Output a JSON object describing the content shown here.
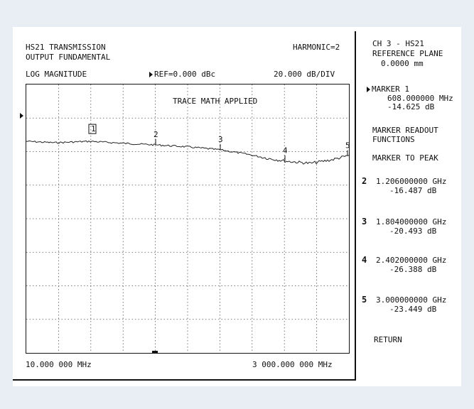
{
  "header": {
    "title_line1": "HS21 TRANSMISSION",
    "title_line2": "OUTPUT FUNDAMENTAL",
    "harmonic": "HARMONIC=2",
    "format": "LOG MAGNITUDE",
    "ref": "REF=0.000 dBc",
    "scale": "20.000 dB/DIV"
  },
  "plot": {
    "annotation": "TRACE MATH APPLIED",
    "start_freq": "10.000 000 MHz",
    "stop_freq": "3 000.000 000 MHz",
    "markers": [
      "1",
      "2",
      "3",
      "4",
      "5"
    ]
  },
  "side": {
    "channel": "CH 3 - HS21",
    "ref_plane_label": "REFERENCE PLANE",
    "ref_plane_value": "0.0000 mm",
    "active_marker": "MARKER 1",
    "active_marker_freq": "608.000000 MHz",
    "active_marker_val": "-14.625 dB",
    "readout_line1": "MARKER READOUT",
    "readout_line2": "FUNCTIONS",
    "marker_to_peak": "MARKER TO PEAK",
    "markers": [
      {
        "num": "2",
        "freq": "1.206000000 GHz",
        "val": "-16.487 dB"
      },
      {
        "num": "3",
        "freq": "1.804000000 GHz",
        "val": "-20.493 dB"
      },
      {
        "num": "4",
        "freq": "2.402000000 GHz",
        "val": "-26.388 dB"
      },
      {
        "num": "5",
        "freq": "3.000000000 GHz",
        "val": "-23.449 dB"
      }
    ],
    "return": "RETURN"
  }
}
